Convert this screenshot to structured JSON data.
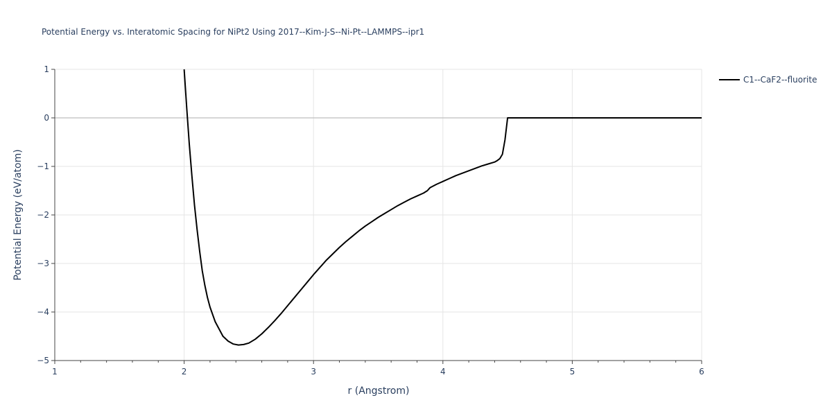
{
  "chart_data": {
    "type": "line",
    "title": "Potential Energy vs. Interatomic Spacing for NiPt2 Using 2017--Kim-J-S--Ni-Pt--LAMMPS--ipr1",
    "xlabel": "r (Angstrom)",
    "ylabel": "Potential Energy (eV/atom)",
    "xlim": [
      1,
      6
    ],
    "ylim": [
      -5,
      1
    ],
    "x_ticks": [
      1,
      2,
      3,
      4,
      5,
      6
    ],
    "x_tick_labels": [
      "1",
      "2",
      "3",
      "4",
      "5",
      "6"
    ],
    "y_ticks": [
      1,
      0,
      -1,
      -2,
      -3,
      -4,
      -5
    ],
    "y_tick_labels": [
      "1",
      "0",
      "−1",
      "−2",
      "−3",
      "−4",
      "−5"
    ],
    "grid": true,
    "legend_position": "top-right",
    "series": [
      {
        "name": "C1--CaF2--fluorite",
        "color": "#000000",
        "x": [
          2.0,
          2.02,
          2.04,
          2.06,
          2.08,
          2.1,
          2.12,
          2.14,
          2.16,
          2.18,
          2.2,
          2.22,
          2.24,
          2.27,
          2.3,
          2.34,
          2.38,
          2.42,
          2.46,
          2.5,
          2.55,
          2.6,
          2.65,
          2.7,
          2.75,
          2.8,
          2.85,
          2.9,
          2.95,
          3.0,
          3.05,
          3.1,
          3.15,
          3.2,
          3.25,
          3.3,
          3.35,
          3.4,
          3.45,
          3.5,
          3.55,
          3.6,
          3.65,
          3.7,
          3.75,
          3.8,
          3.85,
          3.88,
          3.9,
          3.95,
          4.0,
          4.05,
          4.1,
          4.15,
          4.2,
          4.25,
          4.3,
          4.35,
          4.4,
          4.42,
          4.44,
          4.46,
          4.48,
          4.5,
          4.6,
          4.8,
          5.0,
          5.2,
          5.4,
          5.6,
          5.8,
          6.0
        ],
        "y": [
          1.0,
          0.2,
          -0.55,
          -1.2,
          -1.8,
          -2.3,
          -2.75,
          -3.15,
          -3.45,
          -3.7,
          -3.9,
          -4.05,
          -4.2,
          -4.35,
          -4.5,
          -4.6,
          -4.66,
          -4.68,
          -4.67,
          -4.64,
          -4.56,
          -4.45,
          -4.32,
          -4.18,
          -4.03,
          -3.87,
          -3.71,
          -3.55,
          -3.39,
          -3.23,
          -3.08,
          -2.93,
          -2.8,
          -2.67,
          -2.55,
          -2.44,
          -2.33,
          -2.23,
          -2.14,
          -2.05,
          -1.97,
          -1.89,
          -1.81,
          -1.74,
          -1.67,
          -1.61,
          -1.55,
          -1.5,
          -1.44,
          -1.37,
          -1.31,
          -1.25,
          -1.19,
          -1.14,
          -1.09,
          -1.04,
          -0.99,
          -0.95,
          -0.91,
          -0.88,
          -0.84,
          -0.75,
          -0.45,
          0.0,
          0.0,
          0.0,
          0.0,
          0.0,
          0.0,
          0.0,
          0.0,
          0.0
        ]
      }
    ]
  }
}
